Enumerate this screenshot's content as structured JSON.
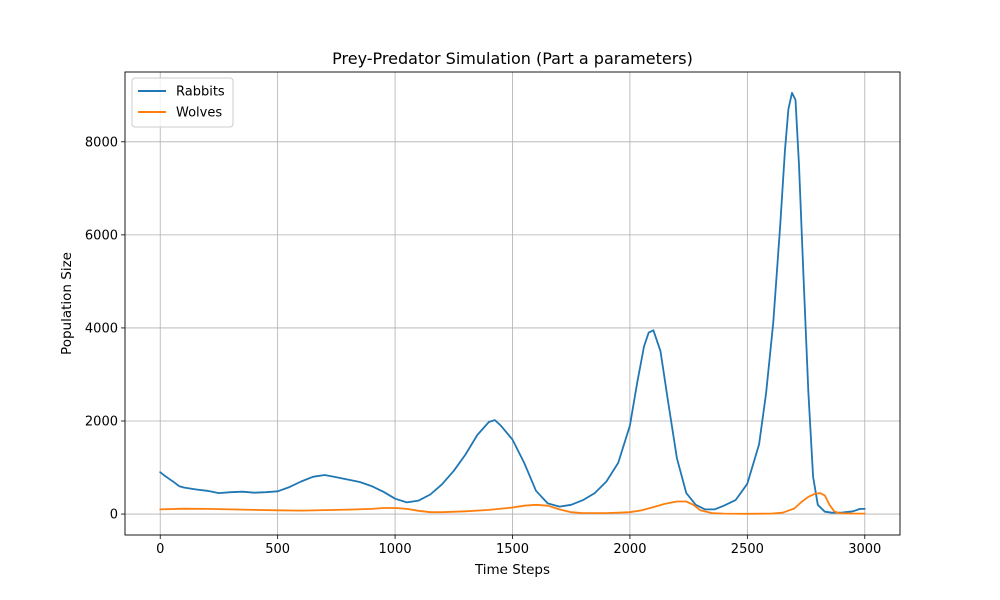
{
  "chart_data": {
    "type": "line",
    "title": "Prey-Predator Simulation (Part a parameters)",
    "xlabel": "Time Steps",
    "ylabel": "Population Size",
    "xlim": [
      -150,
      3150
    ],
    "ylim": [
      -450,
      9500
    ],
    "xticks": [
      0,
      500,
      1000,
      1500,
      2000,
      2500,
      3000
    ],
    "xtick_labels": [
      "0",
      "500",
      "1000",
      "1500",
      "2000",
      "2500",
      "3000"
    ],
    "yticks": [
      0,
      2000,
      4000,
      6000,
      8000
    ],
    "ytick_labels": [
      "0",
      "2000",
      "4000",
      "6000",
      "8000"
    ],
    "grid": true,
    "legend": "upper left",
    "series": [
      {
        "name": "Rabbits",
        "color": "#1f77b4",
        "x": [
          0,
          20,
          40,
          60,
          80,
          100,
          150,
          200,
          250,
          300,
          350,
          400,
          450,
          500,
          550,
          600,
          650,
          700,
          750,
          800,
          850,
          900,
          950,
          1000,
          1050,
          1100,
          1150,
          1200,
          1250,
          1300,
          1350,
          1400,
          1425,
          1450,
          1500,
          1550,
          1600,
          1650,
          1700,
          1750,
          1800,
          1850,
          1900,
          1950,
          2000,
          2030,
          2060,
          2080,
          2100,
          2130,
          2160,
          2200,
          2240,
          2280,
          2320,
          2360,
          2400,
          2450,
          2500,
          2550,
          2580,
          2610,
          2640,
          2660,
          2675,
          2690,
          2705,
          2720,
          2740,
          2760,
          2780,
          2800,
          2830,
          2860,
          2900,
          2950,
          2980,
          3000
        ],
        "y": [
          900,
          820,
          750,
          680,
          600,
          570,
          530,
          500,
          450,
          470,
          480,
          460,
          470,
          490,
          580,
          700,
          800,
          840,
          790,
          740,
          690,
          600,
          480,
          330,
          250,
          290,
          420,
          640,
          930,
          1280,
          1700,
          1980,
          2020,
          1900,
          1600,
          1100,
          500,
          230,
          160,
          200,
          300,
          450,
          700,
          1100,
          1900,
          2800,
          3600,
          3900,
          3950,
          3500,
          2500,
          1200,
          450,
          200,
          100,
          100,
          180,
          300,
          650,
          1500,
          2600,
          4100,
          6200,
          7800,
          8700,
          9050,
          8900,
          7500,
          5000,
          2600,
          800,
          200,
          50,
          30,
          30,
          60,
          110,
          110
        ]
      },
      {
        "name": "Wolves",
        "color": "#ff7f0e",
        "x": [
          0,
          100,
          200,
          300,
          400,
          500,
          600,
          700,
          800,
          900,
          950,
          1000,
          1050,
          1100,
          1150,
          1200,
          1300,
          1400,
          1500,
          1550,
          1600,
          1650,
          1700,
          1750,
          1800,
          1900,
          2000,
          2050,
          2100,
          2150,
          2200,
          2240,
          2270,
          2300,
          2350,
          2400,
          2500,
          2600,
          2650,
          2700,
          2730,
          2760,
          2790,
          2810,
          2830,
          2850,
          2870,
          2890,
          2950,
          3000
        ],
        "y": [
          100,
          115,
          110,
          100,
          90,
          80,
          75,
          85,
          95,
          110,
          130,
          130,
          110,
          70,
          40,
          40,
          60,
          90,
          140,
          180,
          200,
          180,
          100,
          40,
          20,
          20,
          40,
          80,
          150,
          220,
          270,
          270,
          200,
          80,
          20,
          10,
          5,
          10,
          30,
          120,
          260,
          370,
          440,
          450,
          400,
          200,
          60,
          20,
          10,
          10
        ]
      }
    ]
  }
}
